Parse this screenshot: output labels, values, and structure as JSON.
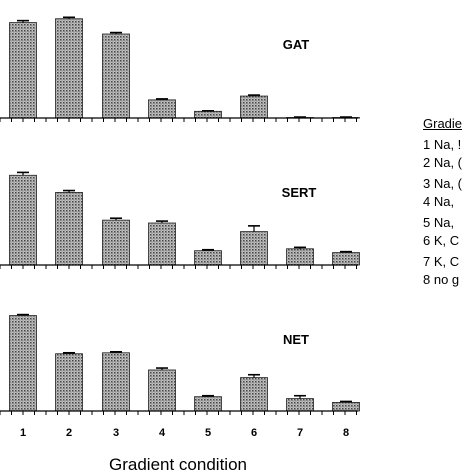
{
  "chart_data": [
    {
      "type": "bar",
      "panel_label": "GAT",
      "categories": [
        "1",
        "2",
        "3",
        "4",
        "5",
        "6",
        "7",
        "8"
      ],
      "values": [
        100,
        104,
        88,
        19,
        7,
        23,
        0.5,
        0.5
      ],
      "errors": [
        2,
        1.5,
        1.5,
        1,
        0.5,
        1,
        0.5,
        0.5
      ],
      "ylim": [
        0,
        110
      ]
    },
    {
      "type": "bar",
      "panel_label": "SERT",
      "categories": [
        "1",
        "2",
        "3",
        "4",
        "5",
        "6",
        "7",
        "8"
      ],
      "values": [
        94,
        76,
        47,
        44,
        15,
        35,
        17,
        13
      ],
      "errors": [
        3,
        2,
        2,
        2,
        1,
        6,
        1.5,
        1
      ],
      "ylim": [
        0,
        110
      ]
    },
    {
      "type": "bar",
      "panel_label": "NET",
      "categories": [
        "1",
        "2",
        "3",
        "4",
        "5",
        "6",
        "7",
        "8"
      ],
      "values": [
        100,
        60,
        61,
        43,
        15,
        35,
        13,
        9
      ],
      "errors": [
        1,
        1,
        1,
        2,
        1,
        3,
        3,
        1
      ],
      "ylim": [
        0,
        110
      ]
    }
  ],
  "x_tick_labels": [
    "1",
    "2",
    "3",
    "4",
    "5",
    "6",
    "7",
    "8"
  ],
  "xlabel": "Gradient condition",
  "legend": {
    "title": "Gradie",
    "items": [
      "1 Na, !",
      "2 Na, (",
      "3 Na, (",
      "4 Na,",
      "5 Na,",
      "6 K, C",
      "7 K, C",
      "8 no g"
    ]
  }
}
